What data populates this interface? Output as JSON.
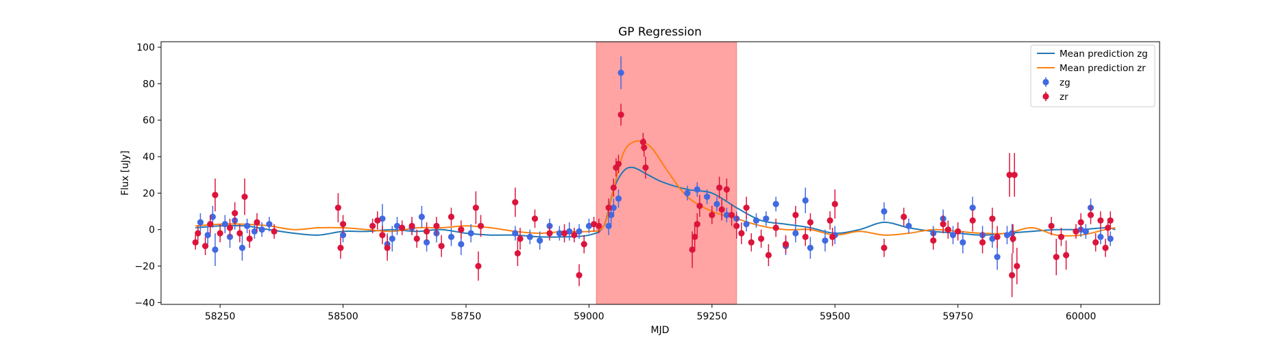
{
  "chart_data": {
    "type": "scatter",
    "title": "GP Regression",
    "xlabel": "MJD",
    "ylabel": "Flux [uJy]",
    "xlim": [
      58130,
      60160
    ],
    "ylim": [
      -41,
      103
    ],
    "xticks": [
      58250,
      58500,
      58750,
      59000,
      59250,
      59500,
      59750,
      60000
    ],
    "yticks": [
      -40,
      -20,
      0,
      20,
      40,
      60,
      80,
      100
    ],
    "legend_position": "top-right",
    "highlight_band": {
      "x_start": 59015,
      "x_end": 59300,
      "color": "#ffa3a3"
    },
    "colors": {
      "zg": "#4169e1",
      "zr": "#dc143c",
      "mean_zg": "#1f77b4",
      "mean_zr": "#ff7f0e"
    },
    "legend": [
      {
        "label": "Mean prediction zg",
        "kind": "line",
        "color": "#1f77b4"
      },
      {
        "label": "Mean prediction zr",
        "kind": "line",
        "color": "#ff7f0e"
      },
      {
        "label": "zg",
        "kind": "errorbar",
        "color": "#4169e1"
      },
      {
        "label": "zr",
        "kind": "errorbar",
        "color": "#dc143c"
      }
    ],
    "mean_lines": [
      {
        "name": "Mean prediction zg",
        "color": "#1f77b4",
        "x": [
          58200,
          58250,
          58300,
          58350,
          58400,
          58450,
          58500,
          58550,
          58600,
          58650,
          58700,
          58750,
          58800,
          58850,
          58900,
          58950,
          59000,
          59030,
          59050,
          59070,
          59090,
          59120,
          59150,
          59200,
          59250,
          59300,
          59350,
          59400,
          59450,
          59500,
          59550,
          59600,
          59650,
          59700,
          59750,
          59800,
          59850,
          59900,
          59950,
          60000,
          60050,
          60070
        ],
        "y": [
          1,
          2,
          2,
          0,
          -2,
          -3,
          -1,
          -1,
          0,
          -1,
          0,
          -2,
          -3,
          -3,
          -4,
          -4,
          -3,
          2,
          22,
          32,
          34,
          30,
          26,
          22,
          20,
          12,
          5,
          3,
          1,
          -2,
          0,
          4,
          1,
          -1,
          -2,
          -3,
          -2,
          -1,
          0,
          0,
          1,
          0
        ]
      },
      {
        "name": "Mean prediction zr",
        "color": "#ff7f0e",
        "x": [
          58200,
          58250,
          58300,
          58350,
          58400,
          58450,
          58500,
          58550,
          58600,
          58650,
          58700,
          58750,
          58800,
          58850,
          58900,
          58950,
          59000,
          59030,
          59050,
          59070,
          59090,
          59110,
          59130,
          59160,
          59200,
          59250,
          59300,
          59350,
          59400,
          59450,
          59500,
          59550,
          59600,
          59650,
          59700,
          59750,
          59800,
          59850,
          59900,
          59950,
          60000,
          60050,
          60070
        ],
        "y": [
          2,
          3,
          3,
          2,
          0,
          1,
          1,
          0,
          -1,
          1,
          1,
          2,
          1,
          -1,
          -2,
          -1,
          -1,
          2,
          22,
          42,
          48,
          48,
          44,
          32,
          18,
          10,
          6,
          2,
          0,
          0,
          -3,
          -1,
          -3,
          -2,
          0,
          -1,
          -2,
          -2,
          1,
          -3,
          -3,
          0,
          1
        ]
      }
    ],
    "series": [
      {
        "name": "zg",
        "color": "#4169e1",
        "points": [
          [
            58210,
            4,
            5
          ],
          [
            58225,
            -3,
            5
          ],
          [
            58235,
            7,
            6
          ],
          [
            58240,
            -11,
            9
          ],
          [
            58260,
            3,
            5
          ],
          [
            58270,
            -4,
            6
          ],
          [
            58280,
            5,
            5
          ],
          [
            58295,
            -10,
            7
          ],
          [
            58305,
            2,
            4
          ],
          [
            58320,
            -1,
            4
          ],
          [
            58335,
            0,
            4
          ],
          [
            58350,
            3,
            4
          ],
          [
            58500,
            -3,
            4
          ],
          [
            58580,
            6,
            8
          ],
          [
            58590,
            -8,
            6
          ],
          [
            58600,
            -5,
            7
          ],
          [
            58610,
            2,
            5
          ],
          [
            58640,
            1,
            4
          ],
          [
            58660,
            7,
            6
          ],
          [
            58670,
            -7,
            5
          ],
          [
            58690,
            -2,
            5
          ],
          [
            58720,
            -4,
            5
          ],
          [
            58740,
            -8,
            6
          ],
          [
            58760,
            -2,
            5
          ],
          [
            58850,
            -2,
            4
          ],
          [
            58880,
            -4,
            4
          ],
          [
            58900,
            -6,
            5
          ],
          [
            58920,
            2,
            4
          ],
          [
            58940,
            -2,
            4
          ],
          [
            58960,
            -1,
            5
          ],
          [
            58980,
            -1,
            4
          ],
          [
            59000,
            2,
            4
          ],
          [
            59040,
            2,
            5
          ],
          [
            59045,
            8,
            5
          ],
          [
            59050,
            12,
            5
          ],
          [
            59060,
            17,
            5
          ],
          [
            59065,
            86,
            9
          ],
          [
            59200,
            20,
            4
          ],
          [
            59220,
            22,
            4
          ],
          [
            59240,
            18,
            4
          ],
          [
            59260,
            14,
            4
          ],
          [
            59280,
            8,
            4
          ],
          [
            59300,
            6,
            4
          ],
          [
            59320,
            3,
            4
          ],
          [
            59340,
            5,
            4
          ],
          [
            59360,
            6,
            4
          ],
          [
            59380,
            14,
            4
          ],
          [
            59400,
            -9,
            5
          ],
          [
            59420,
            -2,
            5
          ],
          [
            59440,
            16,
            7
          ],
          [
            59450,
            -10,
            6
          ],
          [
            59480,
            -6,
            6
          ],
          [
            59500,
            -3,
            5
          ],
          [
            59600,
            10,
            5
          ],
          [
            59650,
            2,
            4
          ],
          [
            59700,
            -2,
            4
          ],
          [
            59720,
            6,
            5
          ],
          [
            59740,
            -3,
            5
          ],
          [
            59760,
            -7,
            6
          ],
          [
            59780,
            12,
            6
          ],
          [
            59800,
            -3,
            5
          ],
          [
            59820,
            -5,
            5
          ],
          [
            59830,
            -15,
            7
          ],
          [
            59850,
            -3,
            5
          ],
          [
            59860,
            -2,
            5
          ],
          [
            60000,
            0,
            4
          ],
          [
            60010,
            -1,
            4
          ],
          [
            60020,
            12,
            5
          ],
          [
            60040,
            -4,
            4
          ],
          [
            60060,
            -5,
            4
          ]
        ]
      },
      {
        "name": "zr",
        "color": "#dc143c",
        "points": [
          [
            58200,
            -7,
            4
          ],
          [
            58205,
            -2,
            4
          ],
          [
            58220,
            -9,
            5
          ],
          [
            58230,
            3,
            5
          ],
          [
            58240,
            19,
            9
          ],
          [
            58250,
            -2,
            5
          ],
          [
            58270,
            1,
            5
          ],
          [
            58280,
            9,
            6
          ],
          [
            58290,
            -2,
            5
          ],
          [
            58300,
            18,
            10
          ],
          [
            58310,
            -5,
            5
          ],
          [
            58325,
            4,
            5
          ],
          [
            58360,
            -1,
            4
          ],
          [
            58490,
            12,
            8
          ],
          [
            58495,
            -10,
            6
          ],
          [
            58500,
            3,
            5
          ],
          [
            58560,
            2,
            4
          ],
          [
            58570,
            5,
            5
          ],
          [
            58580,
            -3,
            5
          ],
          [
            58590,
            -10,
            7
          ],
          [
            58620,
            1,
            4
          ],
          [
            58640,
            2,
            5
          ],
          [
            58650,
            -5,
            5
          ],
          [
            58670,
            -1,
            5
          ],
          [
            58690,
            2,
            5
          ],
          [
            58700,
            -9,
            6
          ],
          [
            58720,
            7,
            5
          ],
          [
            58740,
            0,
            5
          ],
          [
            58770,
            12,
            9
          ],
          [
            58775,
            -20,
            8
          ],
          [
            58780,
            2,
            6
          ],
          [
            58850,
            15,
            8
          ],
          [
            58855,
            -13,
            7
          ],
          [
            58860,
            -5,
            6
          ],
          [
            58890,
            6,
            5
          ],
          [
            58920,
            -2,
            4
          ],
          [
            58950,
            -2,
            5
          ],
          [
            58970,
            -3,
            4
          ],
          [
            58980,
            -25,
            6
          ],
          [
            58990,
            -8,
            5
          ],
          [
            59010,
            3,
            4
          ],
          [
            59020,
            2,
            4
          ],
          [
            59040,
            12,
            5
          ],
          [
            59050,
            23,
            5
          ],
          [
            59055,
            34,
            5
          ],
          [
            59060,
            36,
            5
          ],
          [
            59065,
            63,
            6
          ],
          [
            59110,
            48,
            5
          ],
          [
            59112,
            45,
            5
          ],
          [
            59115,
            34,
            6
          ],
          [
            59210,
            -11,
            10
          ],
          [
            59215,
            -4,
            8
          ],
          [
            59220,
            3,
            6
          ],
          [
            59225,
            13,
            6
          ],
          [
            59250,
            8,
            5
          ],
          [
            59265,
            23,
            6
          ],
          [
            59270,
            11,
            6
          ],
          [
            59280,
            22,
            6
          ],
          [
            59290,
            8,
            6
          ],
          [
            59300,
            2,
            7
          ],
          [
            59310,
            -2,
            6
          ],
          [
            59320,
            12,
            6
          ],
          [
            59330,
            -7,
            5
          ],
          [
            59350,
            -5,
            5
          ],
          [
            59365,
            -14,
            6
          ],
          [
            59380,
            1,
            5
          ],
          [
            59400,
            -8,
            5
          ],
          [
            59420,
            8,
            5
          ],
          [
            59440,
            -4,
            5
          ],
          [
            59450,
            4,
            5
          ],
          [
            59490,
            5,
            5
          ],
          [
            59495,
            -4,
            5
          ],
          [
            59500,
            14,
            8
          ],
          [
            59600,
            -10,
            5
          ],
          [
            59640,
            7,
            5
          ],
          [
            59700,
            -6,
            5
          ],
          [
            59720,
            3,
            5
          ],
          [
            59730,
            0,
            5
          ],
          [
            59750,
            -1,
            5
          ],
          [
            59780,
            5,
            6
          ],
          [
            59800,
            -7,
            6
          ],
          [
            59820,
            6,
            6
          ],
          [
            59830,
            -4,
            6
          ],
          [
            59855,
            30,
            12
          ],
          [
            59860,
            -25,
            12
          ],
          [
            59862,
            -5,
            8
          ],
          [
            59865,
            30,
            12
          ],
          [
            59870,
            -20,
            10
          ],
          [
            59940,
            2,
            5
          ],
          [
            59950,
            -15,
            10
          ],
          [
            59960,
            -4,
            5
          ],
          [
            59970,
            -14,
            8
          ],
          [
            59990,
            -1,
            4
          ],
          [
            60000,
            4,
            5
          ],
          [
            60020,
            8,
            5
          ],
          [
            60030,
            -7,
            5
          ],
          [
            60040,
            5,
            5
          ],
          [
            60050,
            -10,
            5
          ],
          [
            60055,
            1,
            5
          ],
          [
            60060,
            5,
            5
          ]
        ]
      }
    ]
  }
}
